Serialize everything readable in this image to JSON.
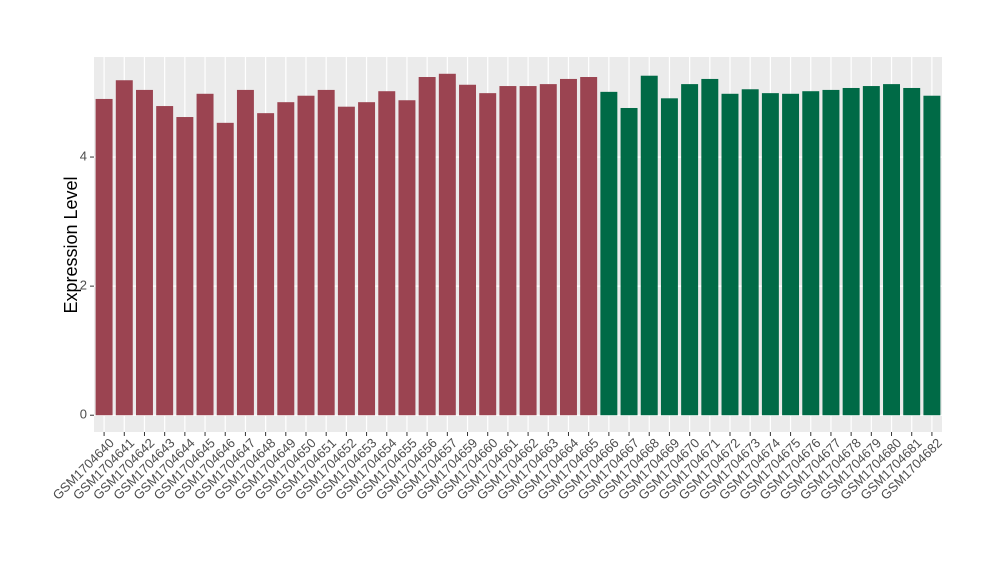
{
  "chart_data": {
    "type": "bar",
    "y_label": "Expression Level",
    "categories": [
      "GSM1704640",
      "GSM1704641",
      "GSM1704642",
      "GSM1704643",
      "GSM1704644",
      "GSM1704645",
      "GSM1704646",
      "GSM1704647",
      "GSM1704648",
      "GSM1704649",
      "GSM1704650",
      "GSM1704651",
      "GSM1704652",
      "GSM1704653",
      "GSM1704654",
      "GSM1704655",
      "GSM1704656",
      "GSM1704657",
      "GSM1704659",
      "GSM1704660",
      "GSM1704661",
      "GSM1704662",
      "GSM1704663",
      "GSM1704664",
      "GSM1704665",
      "GSM1704666",
      "GSM1704667",
      "GSM1704668",
      "GSM1704669",
      "GSM1704670",
      "GSM1704671",
      "GSM1704672",
      "GSM1704673",
      "GSM1704674",
      "GSM1704675",
      "GSM1704676",
      "GSM1704677",
      "GSM1704678",
      "GSM1704679",
      "GSM1704680",
      "GSM1704681",
      "GSM1704682"
    ],
    "values": [
      4.9,
      5.19,
      5.04,
      4.79,
      4.62,
      4.98,
      4.53,
      5.04,
      4.68,
      4.85,
      4.95,
      5.04,
      4.78,
      4.85,
      5.02,
      4.88,
      5.24,
      5.29,
      5.12,
      4.99,
      5.1,
      5.1,
      5.13,
      5.21,
      5.24,
      5.01,
      4.76,
      5.26,
      4.91,
      5.13,
      5.21,
      4.98,
      5.05,
      4.99,
      4.98,
      5.02,
      5.04,
      5.07,
      5.1,
      5.13,
      5.07,
      4.95
    ],
    "colors": [
      "#9b4451",
      "#9b4451",
      "#9b4451",
      "#9b4451",
      "#9b4451",
      "#9b4451",
      "#9b4451",
      "#9b4451",
      "#9b4451",
      "#9b4451",
      "#9b4451",
      "#9b4451",
      "#9b4451",
      "#9b4451",
      "#9b4451",
      "#9b4451",
      "#9b4451",
      "#9b4451",
      "#9b4451",
      "#9b4451",
      "#9b4451",
      "#9b4451",
      "#9b4451",
      "#9b4451",
      "#9b4451",
      "#006a46",
      "#006a46",
      "#006a46",
      "#006a46",
      "#006a46",
      "#006a46",
      "#006a46",
      "#006a46",
      "#006a46",
      "#006a46",
      "#006a46",
      "#006a46",
      "#006a46",
      "#006a46",
      "#006a46",
      "#006a46",
      "#006a46"
    ],
    "ylim": [
      -0.26,
      5.55
    ],
    "yticks": [
      0,
      2,
      4
    ],
    "grid": true
  }
}
